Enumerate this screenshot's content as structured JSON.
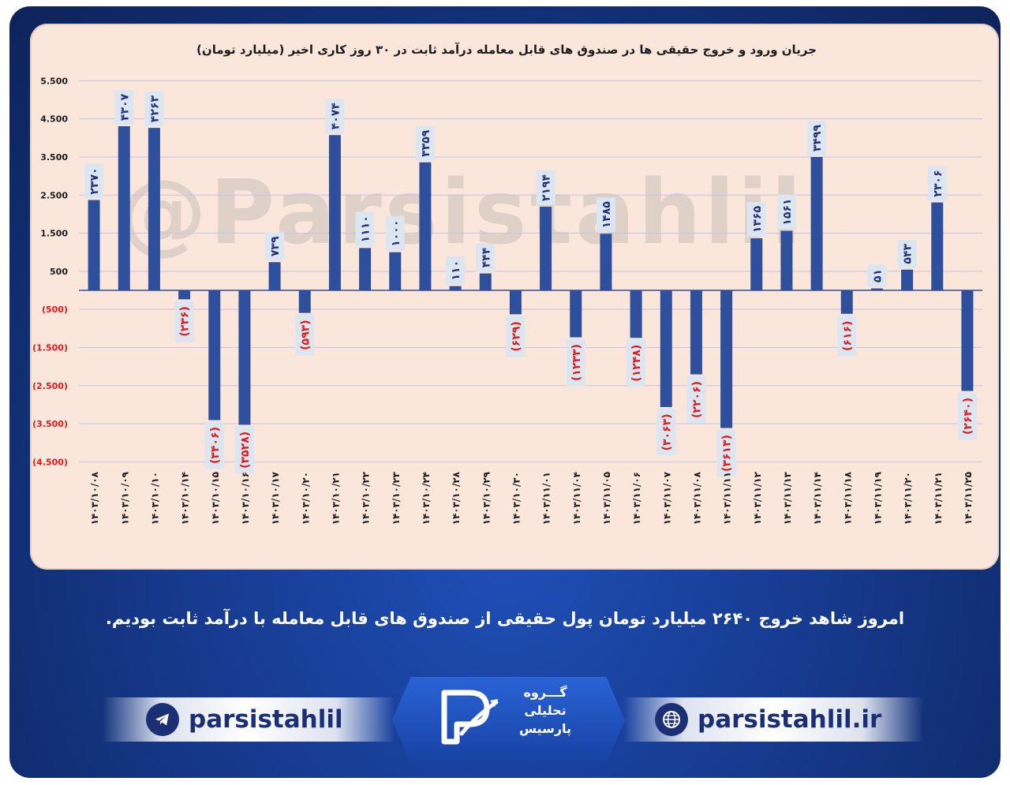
{
  "chart_data": {
    "type": "bar",
    "title": "جریان ورود و خروج حقیقی ها در صندوق های قابل معامله درآمد ثابت در ۳۰ روز کاری اخیر (میلیارد تومان)",
    "xlabel": "",
    "ylabel": "",
    "ylim": [
      -4500,
      5500
    ],
    "grid": true,
    "yticks": [
      5500,
      4500,
      3500,
      2500,
      1500,
      500,
      -500,
      -1500,
      -2500,
      -3500,
      -4500
    ],
    "ytick_labels": [
      "5.500",
      "4.500",
      "3.500",
      "2.500",
      "1.500",
      "500",
      "(500)",
      "(1.500)",
      "(2.500)",
      "(3.500)",
      "(4.500)"
    ],
    "categories": [
      "۱۴۰۳/۱۰/۰۸",
      "۱۴۰۳/۱۰/۰۹",
      "۱۴۰۳/۱۰/۱۰",
      "۱۴۰۳/۱۰/۱۴",
      "۱۴۰۳/۱۰/۱۵",
      "۱۴۰۳/۱۰/۱۶",
      "۱۴۰۳/۱۰/۱۷",
      "۱۴۰۳/۱۰/۲۰",
      "۱۴۰۳/۱۰/۲۱",
      "۱۴۰۳/۱۰/۲۲",
      "۱۴۰۳/۱۰/۲۳",
      "۱۴۰۳/۱۰/۲۴",
      "۱۴۰۳/۱۰/۲۸",
      "۱۴۰۳/۱۰/۲۹",
      "۱۴۰۳/۱۰/۳۰",
      "۱۴۰۳/۱۱/۰۱",
      "۱۴۰۳/۱۱/۰۴",
      "۱۴۰۳/۱۱/۰۵",
      "۱۴۰۳/۱۱/۰۶",
      "۱۴۰۳/۱۱/۰۷",
      "۱۴۰۳/۱۱/۰۸",
      "۱۴۰۳/۱۱/۱۱",
      "۱۴۰۳/۱۱/۱۲",
      "۱۴۰۳/۱۱/۱۳",
      "۱۴۰۳/۱۱/۱۴",
      "۱۴۰۳/۱۱/۱۸",
      "۱۴۰۳/۱۱/۱۹",
      "۱۴۰۳/۱۱/۲۰",
      "۱۴۰۳/۱۱/۲۱",
      "۱۴۰۳/۱۱/۲۵"
    ],
    "values": [
      2370,
      4307,
      4263,
      -236,
      -3406,
      -3528,
      739,
      -593,
      4074,
      1110,
      1000,
      3359,
      110,
      444,
      -629,
      2194,
      -1233,
      1485,
      -1248,
      -3063,
      -2206,
      -3613,
      1365,
      1561,
      3499,
      -616,
      51,
      543,
      2306,
      -2640
    ],
    "data_labels": [
      "۲۳۷۰",
      "۴۳۰۷",
      "۴۲۶۳",
      "(۲۳۶)",
      "(۳۴۰۶)",
      "(۳۵۲۸)",
      "۷۳۹",
      "(۵۹۳)",
      "۴۰۷۴",
      "۱۱۱۰",
      "۱۰۰۰",
      "۳۳۵۹",
      "۱۱۰",
      "۴۴۴",
      "(۶۲۹)",
      "۲۱۹۴",
      "(۱۲۳۳)",
      "۱۴۸۵",
      "(۱۲۴۸)",
      "(۳۰۶۳)",
      "(۲۲۰۶)",
      "(۳۶۱۳)",
      "۱۳۶۵",
      "۱۵۶۱",
      "۳۴۹۹",
      "(۶۱۶)",
      "۵۱",
      "۵۴۳",
      "۲۳۰۶",
      "(۲۶۴۰)"
    ],
    "colors": {
      "bar": "#2e4f9c",
      "positive_label": "#22307a",
      "negative_label": "#e01a1a",
      "label_box": "#dce6f1",
      "grid": "#c9c2e3"
    }
  },
  "watermark": "@Parsistahlil",
  "caption": "امروز شاهد خروج ۲۶۴۰ میلیارد تومان پول حقیقی از صندوق های قابل معامله با درآمد ثابت بودیم.",
  "footer": {
    "telegram_handle": "parsistahlil",
    "website": "parsistahlil.ir",
    "logo_line1": "گـــروه",
    "logo_line2": "تحلیلی",
    "logo_line3": "پارسیس",
    "telegram_icon": "telegram-icon",
    "web_icon": "globe-icon"
  }
}
